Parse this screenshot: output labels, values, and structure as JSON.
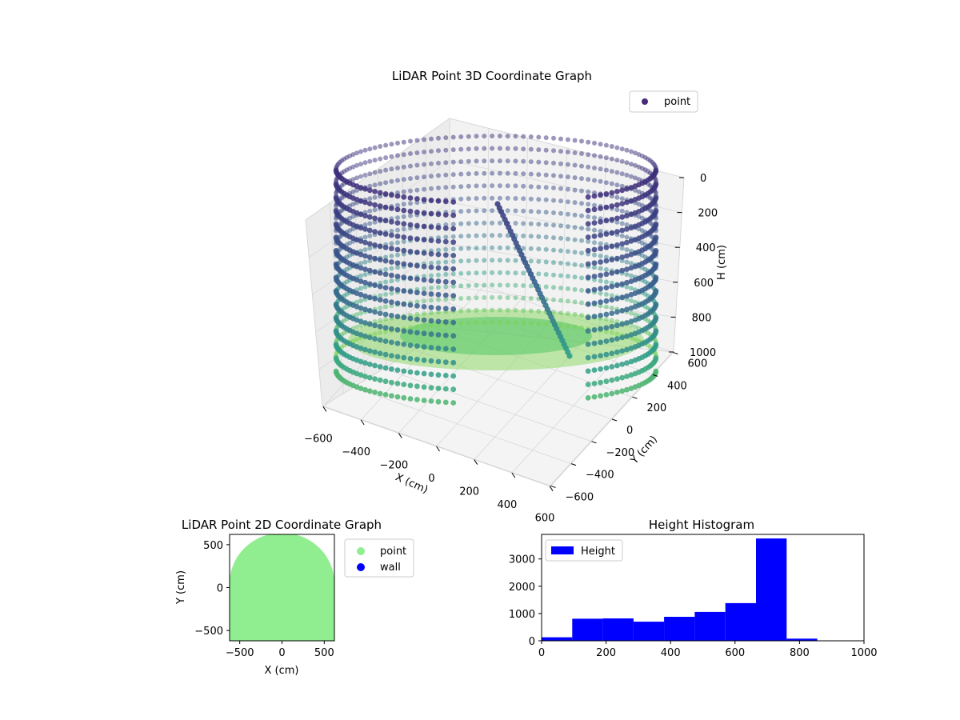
{
  "chart_data": [
    {
      "type": "scatter",
      "projection": "3d",
      "title": "LiDAR Point 3D Coordinate Graph",
      "xlabel": "X (cm)",
      "ylabel": "Y (cm)",
      "zlabel": "H (cm)",
      "xlim": [
        -600,
        600
      ],
      "ylim": [
        -600,
        600
      ],
      "zlim": [
        1000,
        0
      ],
      "z_inverted": true,
      "xticks": [
        "−600",
        "−400",
        "−200",
        "0",
        "200",
        "400",
        "600"
      ],
      "yticks": [
        "−600",
        "−400",
        "−200",
        "0",
        "200",
        "400",
        "600"
      ],
      "zticks": [
        "0",
        "200",
        "400",
        "600",
        "800",
        "1000"
      ],
      "colormap": "viridis",
      "legend": {
        "placement": "upper-right",
        "entries": [
          {
            "label": "point",
            "color": "#472c7a"
          }
        ]
      },
      "series": [
        {
          "name": "point",
          "shape": "cylindrical-wall",
          "radius": 620,
          "h_range": [
            0,
            1000
          ],
          "opening_angle_deg": [
            -120,
            -60
          ]
        }
      ],
      "grid": true
    },
    {
      "type": "scatter",
      "title": "LiDAR Point 2D Coordinate Graph",
      "xlabel": "X (cm)",
      "ylabel": "Y (cm)",
      "xlim": [
        -620,
        620
      ],
      "ylim": [
        -620,
        620
      ],
      "xticks": [
        "−500",
        "0",
        "500"
      ],
      "yticks": [
        "−500",
        "0",
        "500"
      ],
      "legend": {
        "placement": "outside-right",
        "entries": [
          {
            "label": "point",
            "color": "#90ee90"
          },
          {
            "label": "wall",
            "color": "#0000ff"
          }
        ]
      },
      "series": [
        {
          "name": "point",
          "color": "#90ee90",
          "region": "filled-disc",
          "radius": 620
        },
        {
          "name": "wall",
          "color": "#0000ff",
          "points": []
        }
      ]
    },
    {
      "type": "bar",
      "subtype": "histogram",
      "title": "Height Histogram",
      "xlabel": "",
      "ylabel": "",
      "xlim": [
        0,
        1000
      ],
      "ylim": [
        0,
        3900
      ],
      "xticks": [
        "0",
        "200",
        "400",
        "600",
        "800",
        "1000"
      ],
      "yticks": [
        "0",
        "1000",
        "2000",
        "3000"
      ],
      "color": "#0000ff",
      "legend": {
        "placement": "upper-left",
        "entries": [
          {
            "label": "Height",
            "color": "#0000ff"
          }
        ]
      },
      "bin_edges": [
        0,
        95,
        190,
        285,
        380,
        475,
        570,
        665,
        760,
        855,
        950
      ],
      "values": [
        130,
        810,
        820,
        700,
        880,
        1060,
        1380,
        3750,
        80,
        0
      ]
    }
  ]
}
